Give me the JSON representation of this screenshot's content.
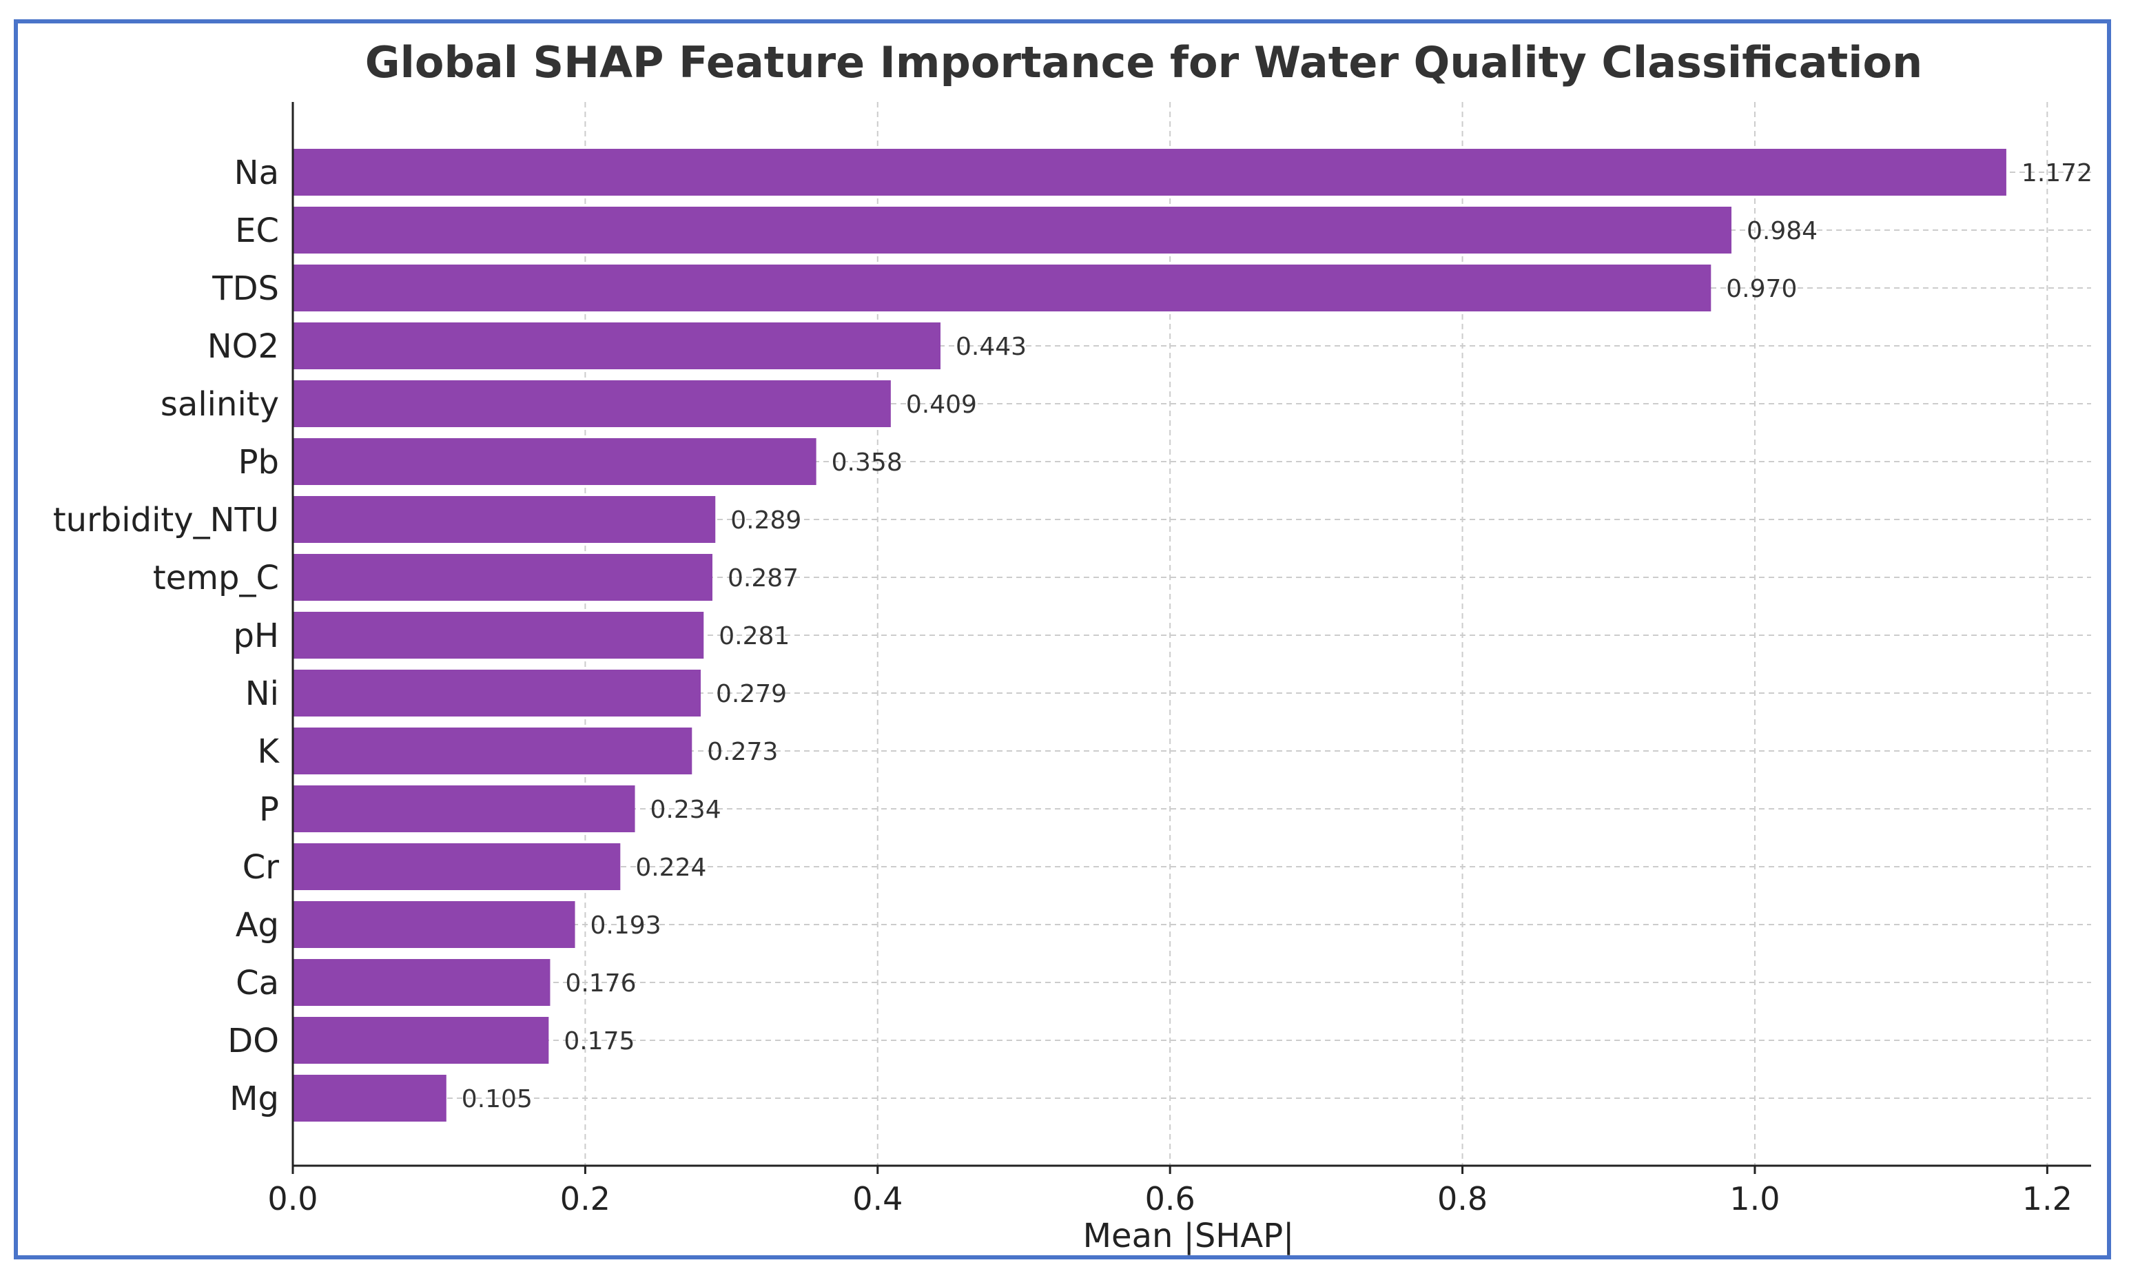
{
  "chart_data": {
    "type": "bar",
    "orientation": "horizontal",
    "title": "Global SHAP Feature Importance for Water Quality Classification",
    "xlabel": "Mean |SHAP|",
    "ylabel": "",
    "xlim": [
      0,
      1.23
    ],
    "xticks": [
      0.0,
      0.2,
      0.4,
      0.6,
      0.8,
      1.0,
      1.2
    ],
    "xtick_labels": [
      "0.0",
      "0.2",
      "0.4",
      "0.6",
      "0.8",
      "1.0",
      "1.2"
    ],
    "grid": true,
    "bar_color": "#8e44ad",
    "categories": [
      "Na",
      "EC",
      "TDS",
      "NO2",
      "salinity",
      "Pb",
      "turbidity_NTU",
      "temp_C",
      "pH",
      "Ni",
      "K",
      "P",
      "Cr",
      "Ag",
      "Ca",
      "DO",
      "Mg"
    ],
    "values": [
      1.172,
      0.984,
      0.97,
      0.443,
      0.409,
      0.358,
      0.289,
      0.287,
      0.281,
      0.279,
      0.273,
      0.234,
      0.224,
      0.193,
      0.176,
      0.175,
      0.105
    ],
    "value_labels": [
      "1.172",
      "0.984",
      "0.970",
      "0.443",
      "0.409",
      "0.358",
      "0.289",
      "0.287",
      "0.281",
      "0.279",
      "0.273",
      "0.234",
      "0.224",
      "0.193",
      "0.176",
      "0.175",
      "0.105"
    ]
  },
  "colors": {
    "frame_border": "#4a74c9",
    "bar": "#8e44ad",
    "grid": "#cccccc",
    "axis": "#222222"
  }
}
